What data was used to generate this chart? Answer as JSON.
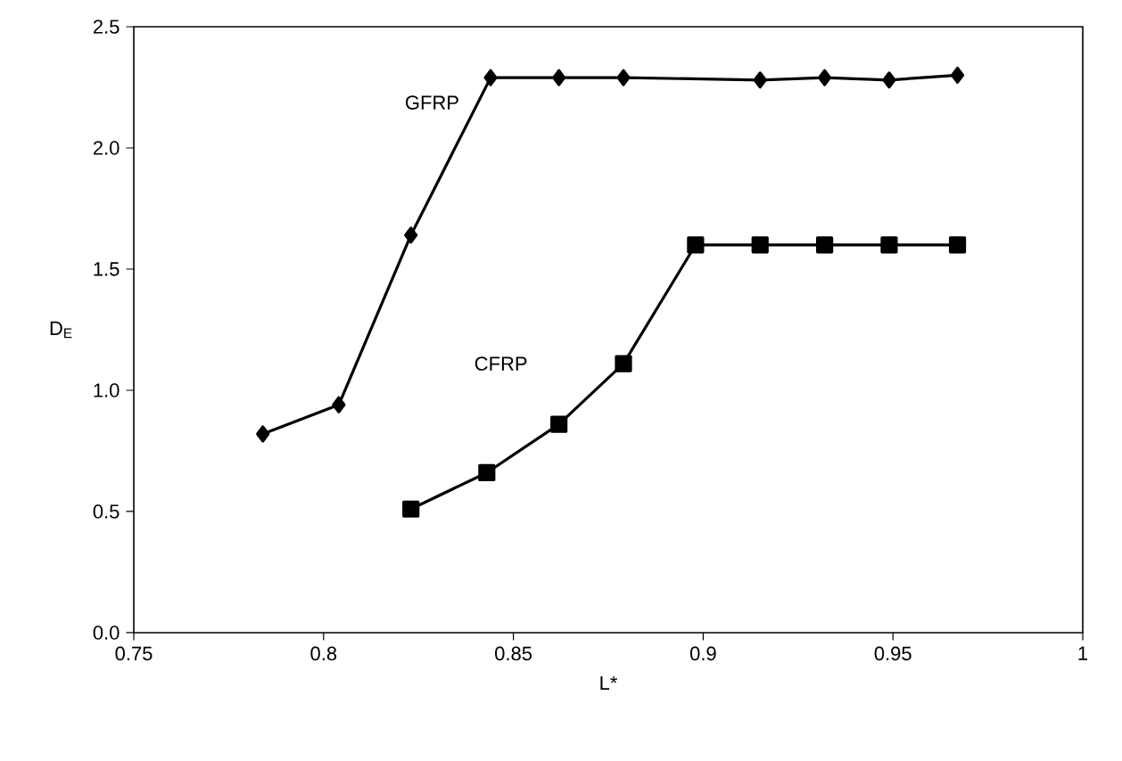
{
  "chart_data": {
    "type": "line",
    "xlabel": "L*",
    "ylabel": "D$_{E}$",
    "xlim": [
      0.75,
      1
    ],
    "xticks": [
      0.75,
      0.8,
      0.85,
      0.9,
      0.95,
      1
    ],
    "ylim": [
      0,
      2.5
    ],
    "yticks": [
      {
        "value": 0,
        "label": "0.0"
      },
      {
        "value": 0.5,
        "label": "0.5"
      },
      {
        "value": 1,
        "label": "1.0"
      },
      {
        "value": 1.5,
        "label": "1.5"
      },
      {
        "value": 2,
        "label": "2.0"
      },
      {
        "value": 2.5,
        "label": "2.5"
      }
    ],
    "grid": false,
    "legend": false,
    "line_style": "solid",
    "series": [
      {
        "name": "GFRP",
        "color": "#000000",
        "marker": "diamond",
        "x": [
          0.784,
          0.804,
          0.823,
          0.844,
          0.862,
          0.879,
          0.915,
          0.932,
          0.949,
          0.967
        ],
        "values": [
          0.82,
          0.94,
          1.64,
          2.29,
          2.29,
          2.29,
          2.28,
          2.29,
          2.28,
          2.3
        ]
      },
      {
        "name": "CFRP",
        "color": "#000000",
        "marker": "square",
        "x": [
          0.823,
          0.843,
          0.862,
          0.879,
          0.898,
          0.915,
          0.932,
          0.949,
          0.967
        ],
        "values": [
          0.51,
          0.66,
          0.86,
          1.11,
          1.6,
          1.6,
          1.6,
          1.6,
          1.6
        ]
      }
    ]
  }
}
